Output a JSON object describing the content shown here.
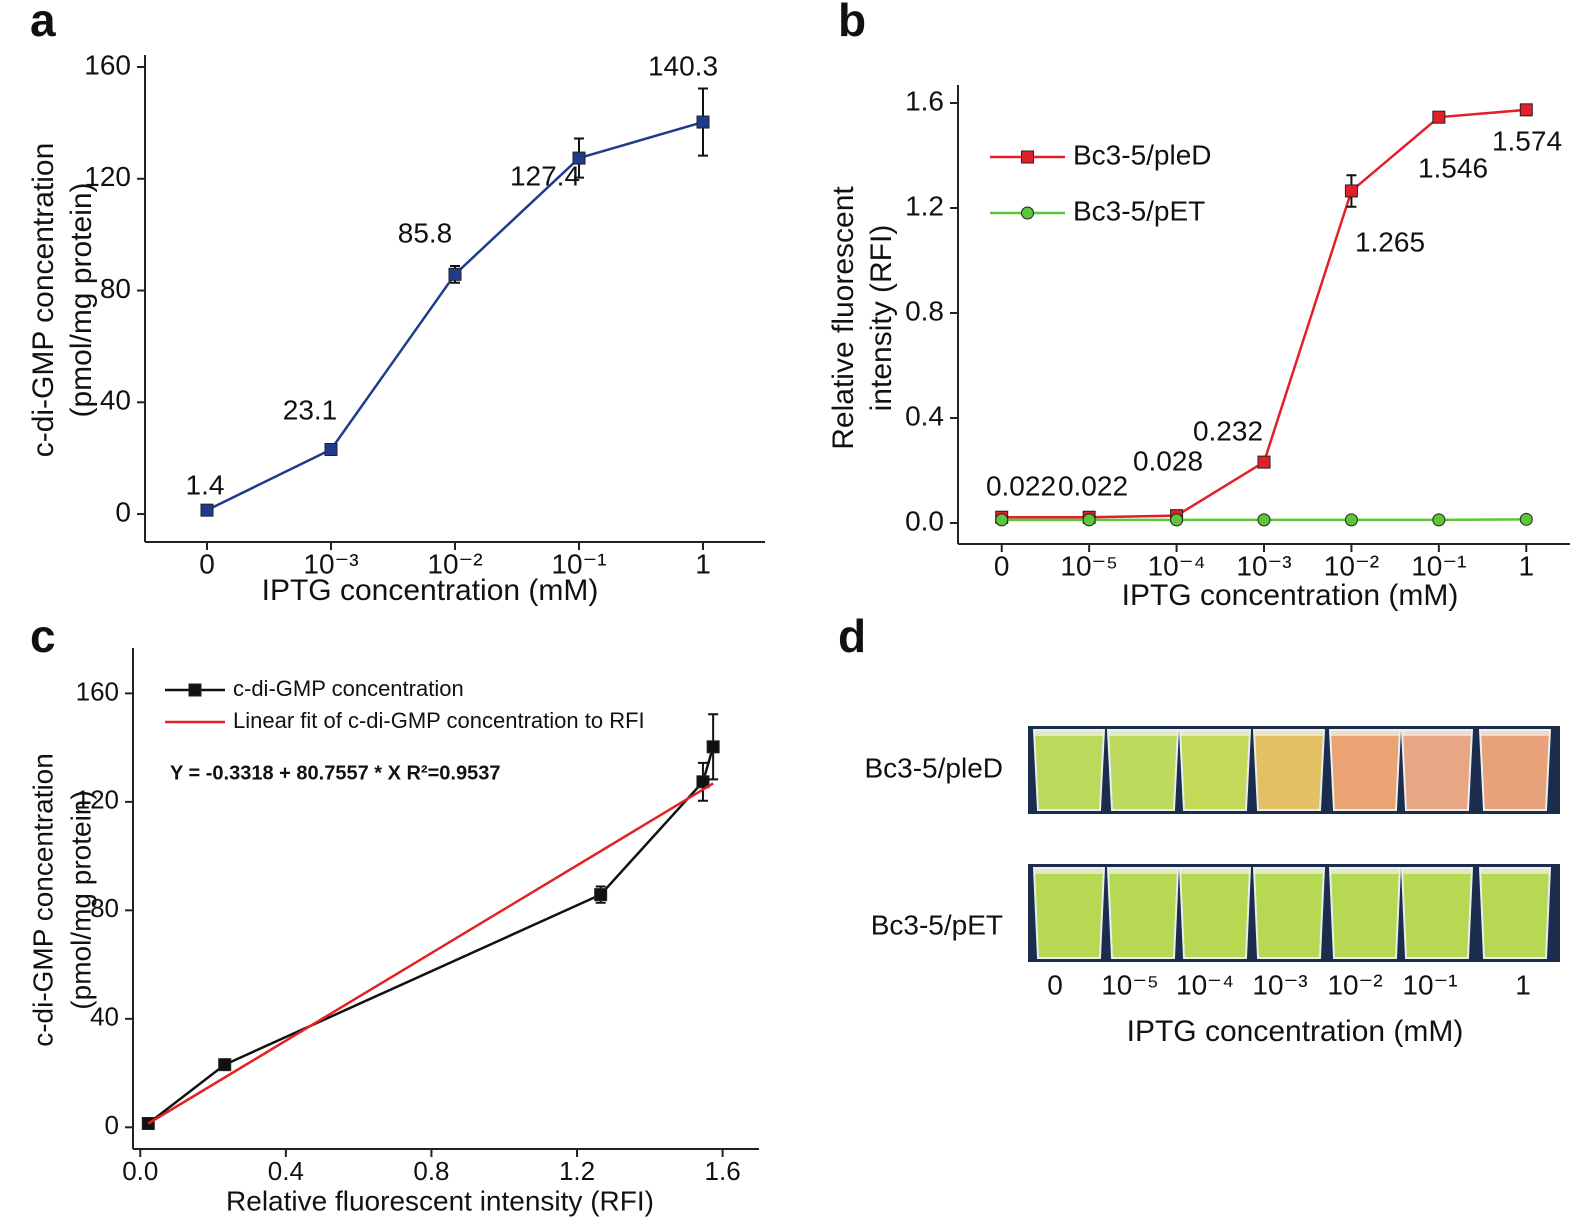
{
  "chart_data": [
    {
      "type": "line",
      "panel_label": "a",
      "xlabel": "IPTG concentration (mM)",
      "ylabel": [
        "c-di-GMP concentration",
        "(pmol/mg protein)"
      ],
      "categories": [
        "0",
        "10⁻³",
        "10⁻²",
        "10⁻¹",
        "1"
      ],
      "series": [
        {
          "color": "#1f3c8c",
          "marker": "square",
          "values": [
            1.4,
            23.1,
            85.8,
            127.4,
            140.3
          ],
          "errors": [
            1,
            1,
            3,
            7,
            12
          ]
        }
      ],
      "ylim": [
        -10,
        160
      ],
      "yticks": [
        0,
        40,
        80,
        120,
        160
      ],
      "data_labels": true
    },
    {
      "type": "line",
      "panel_label": "b",
      "xlabel": "IPTG concentration (mM)",
      "ylabel": [
        "Relative fluorescent",
        "intensity (RFI)"
      ],
      "categories": [
        "0",
        "10⁻⁵",
        "10⁻⁴",
        "10⁻³",
        "10⁻²",
        "10⁻¹",
        "1"
      ],
      "series": [
        {
          "name": "Bc3-5/pleD",
          "color": "#e3202a",
          "marker": "square",
          "values": [
            0.022,
            0.022,
            0.028,
            0.232,
            1.265,
            1.546,
            1.574
          ],
          "errors": [
            0.005,
            0.005,
            0.01,
            0.01,
            0.06,
            0.01,
            0.02
          ],
          "data_labels": true
        },
        {
          "name": "Bc3-5/pET",
          "color": "#5cc53a",
          "marker": "circle",
          "values": [
            0.012,
            0.012,
            0.012,
            0.012,
            0.012,
            0.012,
            0.014
          ],
          "errors": [
            0.005,
            0.005,
            0.005,
            0.005,
            0.005,
            0.005,
            0.005
          ]
        }
      ],
      "ylim": [
        -0.08,
        1.6
      ],
      "yticks": [
        {
          "value": 0,
          "label": "0.0"
        },
        0.4,
        0.8,
        1.2,
        1.6
      ],
      "legend": "upper left"
    },
    {
      "type": "line",
      "panel_label": "c",
      "xlabel": "Relative fluorescent intensity (RFI)",
      "ylabel": [
        "c-di-GMP concentration",
        "(pmol/mg protein)"
      ],
      "series": [
        {
          "name": "c-di-GMP concentration",
          "color": "#111111",
          "marker": "square",
          "x": [
            0.022,
            0.232,
            1.265,
            1.546,
            1.574
          ],
          "values": [
            1.4,
            23.1,
            85.8,
            127.4,
            140.3
          ],
          "errors": [
            1,
            1,
            3,
            7,
            12
          ]
        },
        {
          "name": "Linear fit of c-di-GMP concentration to RFI",
          "color": "#e02424",
          "marker": "none",
          "x": [
            0.022,
            1.574
          ],
          "values": [
            1.4,
            126.8
          ]
        }
      ],
      "annotation": "Y = -0.3318 + 80.7557 * X    R²=0.9537",
      "xlim": [
        -0.02,
        1.7
      ],
      "xticks": [
        {
          "value": 0,
          "label": "0.0"
        },
        0.4,
        0.8,
        1.2,
        1.6
      ],
      "ylim": [
        -8,
        176
      ],
      "yticks": [
        0,
        40,
        80,
        120,
        160
      ],
      "legend": "upper left"
    }
  ],
  "panel_d": {
    "panel_label": "d",
    "rows": [
      "Bc3-5/pleD",
      "Bc3-5/pET"
    ],
    "categories": [
      "0",
      "10⁻⁵",
      "10⁻⁴",
      "10⁻³",
      "10⁻²",
      "10⁻¹",
      "1"
    ],
    "xlabel": "IPTG concentration (mM)"
  }
}
